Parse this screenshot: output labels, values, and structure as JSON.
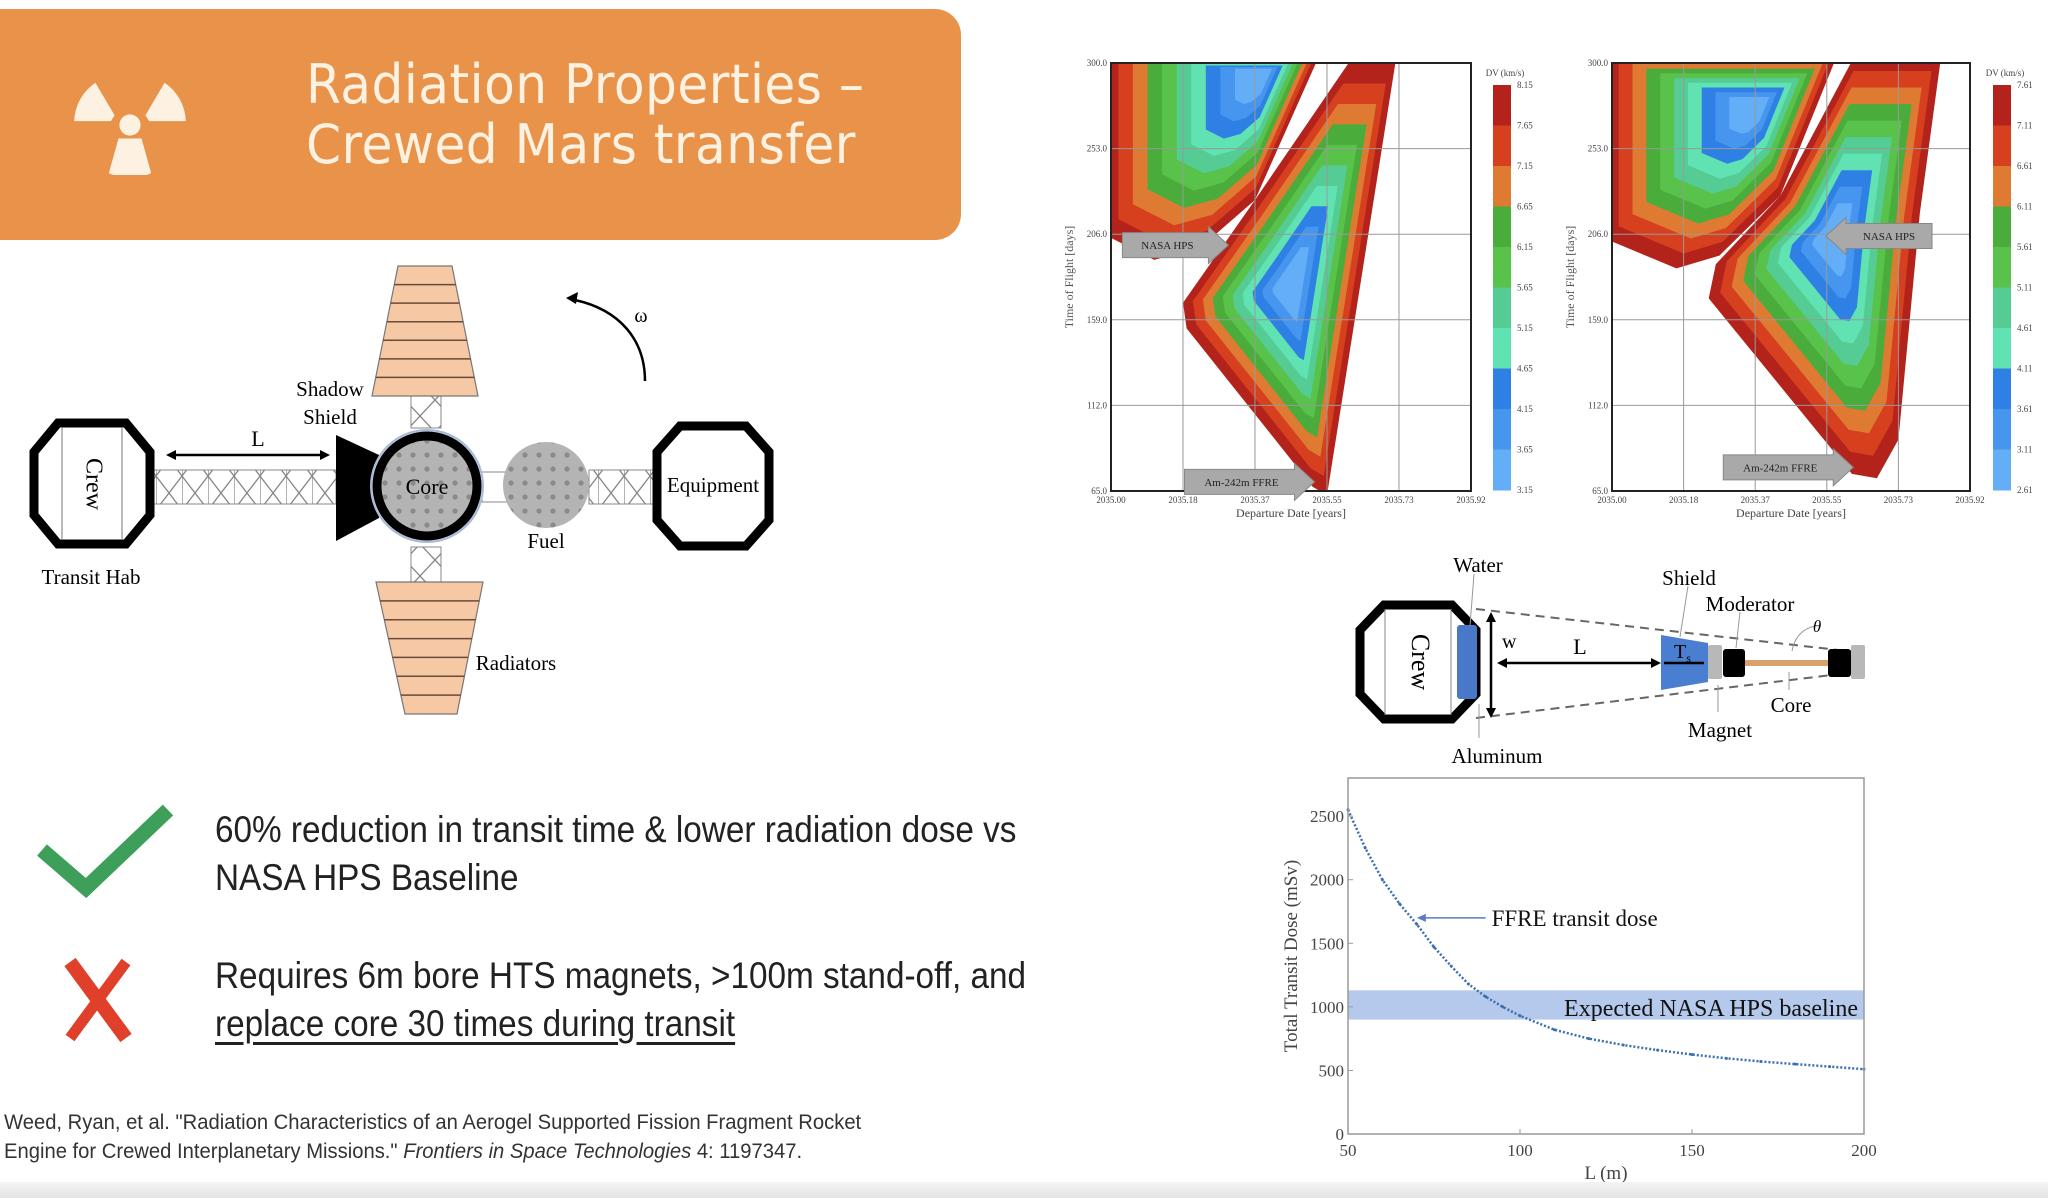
{
  "header": {
    "title_line1": "Radiation Properties –",
    "title_line2": "Crewed Mars transfer",
    "icon": "radiation-icon",
    "background_color": "#e9924a"
  },
  "vehicle_diagram": {
    "crew": "Crew",
    "transit_hab": "Transit Hab",
    "length": "L",
    "shadow_shield_1": "Shadow",
    "shadow_shield_2": "Shield",
    "core": "Core",
    "fuel": "Fuel",
    "equipment": "Equipment",
    "radiators": "Radiators",
    "omega": "ω"
  },
  "shield_diagram": {
    "water": "Water",
    "shield": "Shield",
    "moderator": "Moderator",
    "theta": "θ",
    "crew": "Crew",
    "w": "w",
    "length": "L",
    "ts": "T",
    "ts_sub": "s",
    "core": "Core",
    "magnet": "Magnet",
    "aluminum": "Aluminum"
  },
  "bullets": [
    {
      "icon": "checkmark-icon",
      "color": "#3e9f5a",
      "line1": "60% reduction in transit time & lower radiation dose vs",
      "line2": "NASA HPS Baseline"
    },
    {
      "icon": "x-mark-icon",
      "color": "#e0402a",
      "line1": "Requires 6m bore HTS magnets, >100m stand-off, and",
      "line2": "replace core 30 times during transit"
    }
  ],
  "citation": {
    "line1": "Weed, Ryan, et al. \"Radiation Characteristics of an Aerogel Supported Fission Fragment Rocket",
    "line2_plain": "Engine for Crewed Interplanetary Missions.\" ",
    "line2_italic": "Frontiers in Space Technologies",
    "line2_end": " 4: 1197347."
  },
  "chart_data": [
    {
      "type": "heatmap",
      "style": "filled contour (porkchop plot)",
      "xlabel": "Departure Date [years]",
      "ylabel": "Time of Flight [days]",
      "x_ticks": [
        "2035.00",
        "2035.18",
        "2035.37",
        "2035.55",
        "2035.73",
        "2035.92"
      ],
      "y_ticks": [
        "300.0",
        "253.0",
        "206.0",
        "159.0",
        "112.0",
        "65.0"
      ],
      "xlim": [
        2035.0,
        2035.92
      ],
      "ylim": [
        65.0,
        300.0
      ],
      "grid": true,
      "colorbar_title": "DV (km/s)",
      "colorbar_ticks": [
        "8.15",
        "7.65",
        "7.15",
        "6.65",
        "6.15",
        "5.65",
        "5.15",
        "4.65",
        "4.15",
        "3.65",
        "3.15"
      ],
      "colors": [
        "#b3231b",
        "#d6401f",
        "#df7a32",
        "#4aad3b",
        "#58c24a",
        "#54cc93",
        "#60e2b2",
        "#2f80e4",
        "#4696ef",
        "#63aef6"
      ],
      "annotations": [
        {
          "text": "NASA HPS",
          "direction": "right",
          "x": 2035.3,
          "y": 200
        },
        {
          "text": "Am-242m FFRE",
          "direction": "right",
          "x": 2035.52,
          "y": 70
        }
      ]
    },
    {
      "type": "heatmap",
      "style": "filled contour (porkchop plot)",
      "xlabel": "Departure Date [years]",
      "ylabel": "Time of Flight [days]",
      "x_ticks": [
        "2035.00",
        "2035.18",
        "2035.37",
        "2035.55",
        "2035.73",
        "2035.92"
      ],
      "y_ticks": [
        "300.0",
        "253.0",
        "206.0",
        "159.0",
        "112.0",
        "65.0"
      ],
      "xlim": [
        2035.0,
        2035.92
      ],
      "ylim": [
        65.0,
        300.0
      ],
      "grid": true,
      "colorbar_title": "DV (km/s)",
      "colorbar_ticks": [
        "7.61",
        "7.11",
        "6.61",
        "6.11",
        "5.61",
        "5.11",
        "4.61",
        "4.11",
        "3.61",
        "3.11",
        "2.61"
      ],
      "colors": [
        "#b3231b",
        "#d6401f",
        "#df7a32",
        "#4aad3b",
        "#58c24a",
        "#54cc93",
        "#60e2b2",
        "#2f80e4",
        "#4696ef",
        "#63aef6"
      ],
      "annotations": [
        {
          "text": "NASA HPS",
          "direction": "left",
          "x": 2035.55,
          "y": 205
        },
        {
          "text": "Am-242m FFRE",
          "direction": "right",
          "x": 2035.62,
          "y": 78
        }
      ]
    },
    {
      "type": "line",
      "xlabel": "L (m)",
      "ylabel": "Total Transit Dose (mSv)",
      "xlim": [
        50,
        200
      ],
      "ylim": [
        0,
        2800
      ],
      "x_ticks": [
        50,
        100,
        150,
        200
      ],
      "y_ticks": [
        0,
        500,
        1000,
        1500,
        2000,
        2500
      ],
      "grid": false,
      "series": [
        {
          "name": "FFRE transit dose",
          "color": "#3a6fb0",
          "x": [
            50,
            55,
            60,
            65,
            70,
            75,
            80,
            85,
            90,
            95,
            100,
            110,
            120,
            130,
            140,
            150,
            160,
            170,
            180,
            190,
            200
          ],
          "y": [
            2550,
            2250,
            2000,
            1810,
            1650,
            1470,
            1320,
            1180,
            1080,
            1000,
            930,
            820,
            750,
            700,
            660,
            625,
            595,
            570,
            550,
            530,
            510
          ]
        }
      ],
      "band": {
        "label": "Expected NASA HPS baseline",
        "y_range": [
          900,
          1130
        ],
        "color": "#b4c9ec"
      },
      "annotation": {
        "text": "FFRE transit dose",
        "arrow_to": [
          70,
          1700
        ]
      }
    }
  ]
}
